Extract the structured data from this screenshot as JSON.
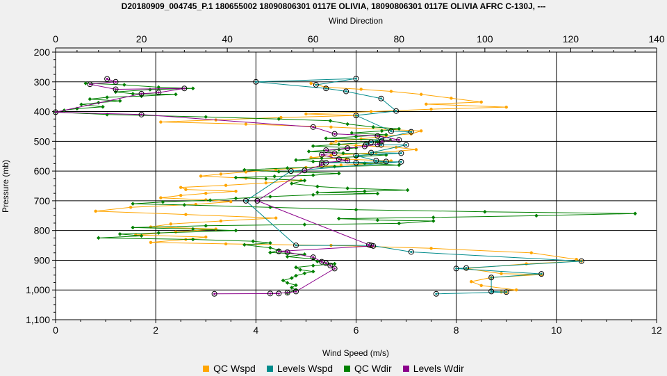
{
  "chart_data": {
    "type": "scatter",
    "title": "D20180909_004745_P.1 180655002 18090806301 0117E OLIVIA, 18090806301 0117E OLIVIA AFRC C-130J, ---",
    "xlabel": "Wind Speed (m/s)",
    "x2label": "Wind Direction",
    "ylabel": "Pressure (mb)",
    "xlim": [
      0,
      12
    ],
    "x2lim": [
      0,
      140
    ],
    "ylim": [
      200,
      1100
    ],
    "y_reversed": true,
    "grid": true,
    "legend_position": "bottom",
    "xticks": [
      "0",
      "2",
      "4",
      "6",
      "8",
      "10",
      "12"
    ],
    "x2ticks": [
      "0",
      "20",
      "40",
      "60",
      "80",
      "100",
      "120",
      "140"
    ],
    "yticks": [
      {
        "value": 200,
        "label": "200"
      },
      {
        "value": 300,
        "label": "300"
      },
      {
        "value": 400,
        "label": "400"
      },
      {
        "value": 500,
        "label": "500"
      },
      {
        "value": 600,
        "label": "600"
      },
      {
        "value": 700,
        "label": "700"
      },
      {
        "value": 800,
        "label": "800"
      },
      {
        "value": 900,
        "label": "900"
      },
      {
        "value": 1000,
        "label": "1,000"
      },
      {
        "value": 1100,
        "label": "1,100"
      }
    ],
    "series": [
      {
        "name": "QC Wspd",
        "color": "#ffa500",
        "axis": "bottom",
        "marker": "dot",
        "points": [
          [
            5.1,
            305
          ],
          [
            5.4,
            318
          ],
          [
            6.1,
            325
          ],
          [
            6.7,
            332
          ],
          [
            7.3,
            342
          ],
          [
            7.9,
            355
          ],
          [
            8.5,
            368
          ],
          [
            7.4,
            375
          ],
          [
            9.0,
            385
          ],
          [
            7.5,
            392
          ],
          [
            6.3,
            400
          ],
          [
            5.0,
            408
          ],
          [
            6.0,
            413
          ],
          [
            4.5,
            420
          ],
          [
            3.2,
            428
          ],
          [
            2.1,
            435
          ],
          [
            3.8,
            442
          ],
          [
            5.5,
            452
          ],
          [
            7.3,
            465
          ],
          [
            7.1,
            475
          ],
          [
            6.6,
            482
          ],
          [
            6.1,
            492
          ],
          [
            5.6,
            500
          ],
          [
            5.5,
            508
          ],
          [
            6.0,
            514
          ],
          [
            6.8,
            520
          ],
          [
            7.2,
            528
          ],
          [
            6.4,
            538
          ],
          [
            5.5,
            548
          ],
          [
            5.1,
            555
          ],
          [
            5.8,
            560
          ],
          [
            6.7,
            566
          ],
          [
            6.5,
            573
          ],
          [
            5.7,
            580
          ],
          [
            5.0,
            588
          ],
          [
            4.4,
            595
          ],
          [
            3.8,
            603
          ],
          [
            3.3,
            610
          ],
          [
            2.9,
            617
          ],
          [
            3.8,
            624
          ],
          [
            4.9,
            631
          ],
          [
            4.2,
            640
          ],
          [
            3.4,
            648
          ],
          [
            2.5,
            655
          ],
          [
            2.6,
            662
          ],
          [
            3.6,
            668
          ],
          [
            3.0,
            675
          ],
          [
            2.5,
            682
          ],
          [
            2.1,
            690
          ],
          [
            3.0,
            697
          ],
          [
            3.5,
            703
          ],
          [
            2.8,
            712
          ],
          [
            1.5,
            722
          ],
          [
            0.8,
            735
          ],
          [
            2.6,
            746
          ],
          [
            4.4,
            758
          ],
          [
            3.3,
            768
          ],
          [
            2.3,
            778
          ],
          [
            1.9,
            788
          ],
          [
            3.2,
            795
          ],
          [
            2.4,
            805
          ],
          [
            1.6,
            815
          ],
          [
            3.0,
            822
          ],
          [
            2.6,
            830
          ],
          [
            1.9,
            840
          ],
          [
            3.4,
            845
          ],
          [
            5.5,
            850
          ],
          [
            7.5,
            860
          ],
          [
            9.5,
            875
          ],
          [
            10.4,
            897
          ],
          [
            10.5,
            903
          ],
          [
            9.4,
            912
          ],
          [
            8.2,
            928
          ],
          [
            8.9,
            945
          ],
          [
            9.7,
            948
          ],
          [
            8.7,
            958
          ],
          [
            8.3,
            972
          ],
          [
            8.5,
            985
          ],
          [
            9.2,
            1000
          ],
          [
            8.9,
            1007
          ],
          [
            9.0,
            1008
          ]
        ]
      },
      {
        "name": "QC Wdir",
        "color": "#008000",
        "axis": "top",
        "marker": "diamond",
        "points": [
          [
            7,
            305
          ],
          [
            16,
            310
          ],
          [
            24,
            318
          ],
          [
            32,
            322
          ],
          [
            22,
            326
          ],
          [
            14,
            334
          ],
          [
            18,
            340
          ],
          [
            28,
            342
          ],
          [
            20,
            348
          ],
          [
            12,
            352
          ],
          [
            8,
            358
          ],
          [
            15,
            364
          ],
          [
            10,
            370
          ],
          [
            6,
            376
          ],
          [
            11,
            384
          ],
          [
            5,
            390
          ],
          [
            2,
            396
          ],
          [
            0,
            402
          ],
          [
            12,
            410
          ],
          [
            35,
            418
          ],
          [
            52,
            425
          ],
          [
            64,
            431
          ],
          [
            68,
            442
          ],
          [
            74,
            452
          ],
          [
            80,
            458
          ],
          [
            76,
            465
          ],
          [
            69,
            472
          ],
          [
            77,
            478
          ],
          [
            70,
            484
          ],
          [
            63,
            490
          ],
          [
            78,
            496
          ],
          [
            75,
            502
          ],
          [
            66,
            510
          ],
          [
            60,
            516
          ],
          [
            70,
            522
          ],
          [
            66,
            528
          ],
          [
            59,
            534
          ],
          [
            67,
            540
          ],
          [
            77,
            546
          ],
          [
            70,
            552
          ],
          [
            62,
            557
          ],
          [
            56,
            563
          ],
          [
            60,
            568
          ],
          [
            72,
            574
          ],
          [
            80,
            580
          ],
          [
            65,
            585
          ],
          [
            54,
            590
          ],
          [
            44,
            596
          ],
          [
            52,
            602
          ],
          [
            66,
            608
          ],
          [
            60,
            614
          ],
          [
            51,
            618
          ],
          [
            42,
            622
          ],
          [
            49,
            626
          ],
          [
            58,
            632
          ],
          [
            55,
            642
          ],
          [
            61,
            652
          ],
          [
            68,
            658
          ],
          [
            82,
            664
          ],
          [
            72,
            668
          ],
          [
            61,
            672
          ],
          [
            75,
            676
          ],
          [
            60,
            680
          ],
          [
            50,
            686
          ],
          [
            42,
            692
          ],
          [
            36,
            698
          ],
          [
            25,
            704
          ],
          [
            18,
            710
          ],
          [
            30,
            714
          ],
          [
            50,
            722
          ],
          [
            70,
            730
          ],
          [
            100,
            737
          ],
          [
            135,
            743
          ],
          [
            112,
            750
          ],
          [
            88,
            756
          ],
          [
            66,
            760
          ],
          [
            75,
            765
          ],
          [
            88,
            768
          ],
          [
            80,
            776
          ],
          [
            58,
            780
          ],
          [
            35,
            784
          ],
          [
            18,
            790
          ],
          [
            32,
            795
          ],
          [
            42,
            800
          ],
          [
            24,
            808
          ],
          [
            15,
            812
          ],
          [
            20,
            818
          ],
          [
            10,
            825
          ],
          [
            32,
            830
          ],
          [
            46,
            836
          ],
          [
            50,
            842
          ],
          [
            44,
            848
          ],
          [
            50,
            858
          ],
          [
            52,
            866
          ],
          [
            50,
            874
          ],
          [
            58,
            880
          ],
          [
            54,
            888
          ],
          [
            60,
            896
          ],
          [
            61,
            904
          ],
          [
            65,
            912
          ],
          [
            60,
            918
          ],
          [
            56,
            924
          ],
          [
            57,
            932
          ],
          [
            60,
            938
          ],
          [
            58,
            944
          ],
          [
            56,
            952
          ],
          [
            55,
            960
          ],
          [
            53,
            968
          ],
          [
            54,
            976
          ],
          [
            56,
            984
          ],
          [
            55,
            992
          ],
          [
            56,
            1000
          ],
          [
            54,
            1010
          ]
        ]
      },
      {
        "name": "Levels Wspd",
        "color": "#008b8b",
        "axis": "bottom",
        "marker": "circle",
        "points": [
          [
            5.2,
            310
          ],
          [
            6.0,
            289
          ],
          [
            4.0,
            300
          ],
          [
            5.4,
            322
          ],
          [
            5.8,
            332
          ],
          [
            6.5,
            356
          ],
          [
            6.8,
            398
          ],
          [
            6.0,
            413
          ],
          [
            6.7,
            466
          ],
          [
            7.1,
            468
          ],
          [
            6.5,
            492
          ],
          [
            6.3,
            503
          ],
          [
            6.2,
            510
          ],
          [
            6.5,
            512
          ],
          [
            7.0,
            512
          ],
          [
            6.3,
            538
          ],
          [
            6.9,
            540
          ],
          [
            6.0,
            548
          ],
          [
            6.4,
            565
          ],
          [
            6.6,
            568
          ],
          [
            6.0,
            572
          ],
          [
            5.4,
            572
          ],
          [
            6.9,
            569
          ],
          [
            4.7,
            600
          ],
          [
            3.8,
            700
          ],
          [
            4.8,
            850
          ],
          [
            6.3,
            850
          ],
          [
            7.1,
            872
          ],
          [
            10.5,
            903
          ],
          [
            8.2,
            926
          ],
          [
            8.0,
            928
          ],
          [
            9.7,
            946
          ],
          [
            8.7,
            958
          ],
          [
            8.7,
            1005
          ],
          [
            9.0,
            1007
          ],
          [
            7.6,
            1013
          ]
        ]
      },
      {
        "name": "Levels Wdir",
        "color": "#8b008b",
        "axis": "top",
        "marker": "circle",
        "points": [
          [
            12,
            290
          ],
          [
            14,
            300
          ],
          [
            8,
            308
          ],
          [
            14,
            325
          ],
          [
            30,
            322
          ],
          [
            24,
            336
          ],
          [
            20,
            340
          ],
          [
            0,
            402
          ],
          [
            20,
            410
          ],
          [
            60,
            452
          ],
          [
            65,
            475
          ],
          [
            75,
            482
          ],
          [
            80,
            495
          ],
          [
            76,
            500
          ],
          [
            75,
            510
          ],
          [
            72,
            517
          ],
          [
            68,
            523
          ],
          [
            63,
            530
          ],
          [
            65,
            540
          ],
          [
            62,
            545
          ],
          [
            66,
            560
          ],
          [
            68,
            565
          ],
          [
            62,
            572
          ],
          [
            62,
            580
          ],
          [
            58,
            598
          ],
          [
            47,
            700
          ],
          [
            73,
            848
          ],
          [
            74,
            852
          ],
          [
            52,
            870
          ],
          [
            54,
            873
          ],
          [
            60,
            890
          ],
          [
            62,
            905
          ],
          [
            63,
            910
          ],
          [
            64,
            918
          ],
          [
            65,
            928
          ],
          [
            56,
            1005
          ],
          [
            54,
            1009
          ],
          [
            50,
            1012
          ],
          [
            52,
            1012
          ],
          [
            37,
            1013
          ]
        ]
      }
    ]
  }
}
